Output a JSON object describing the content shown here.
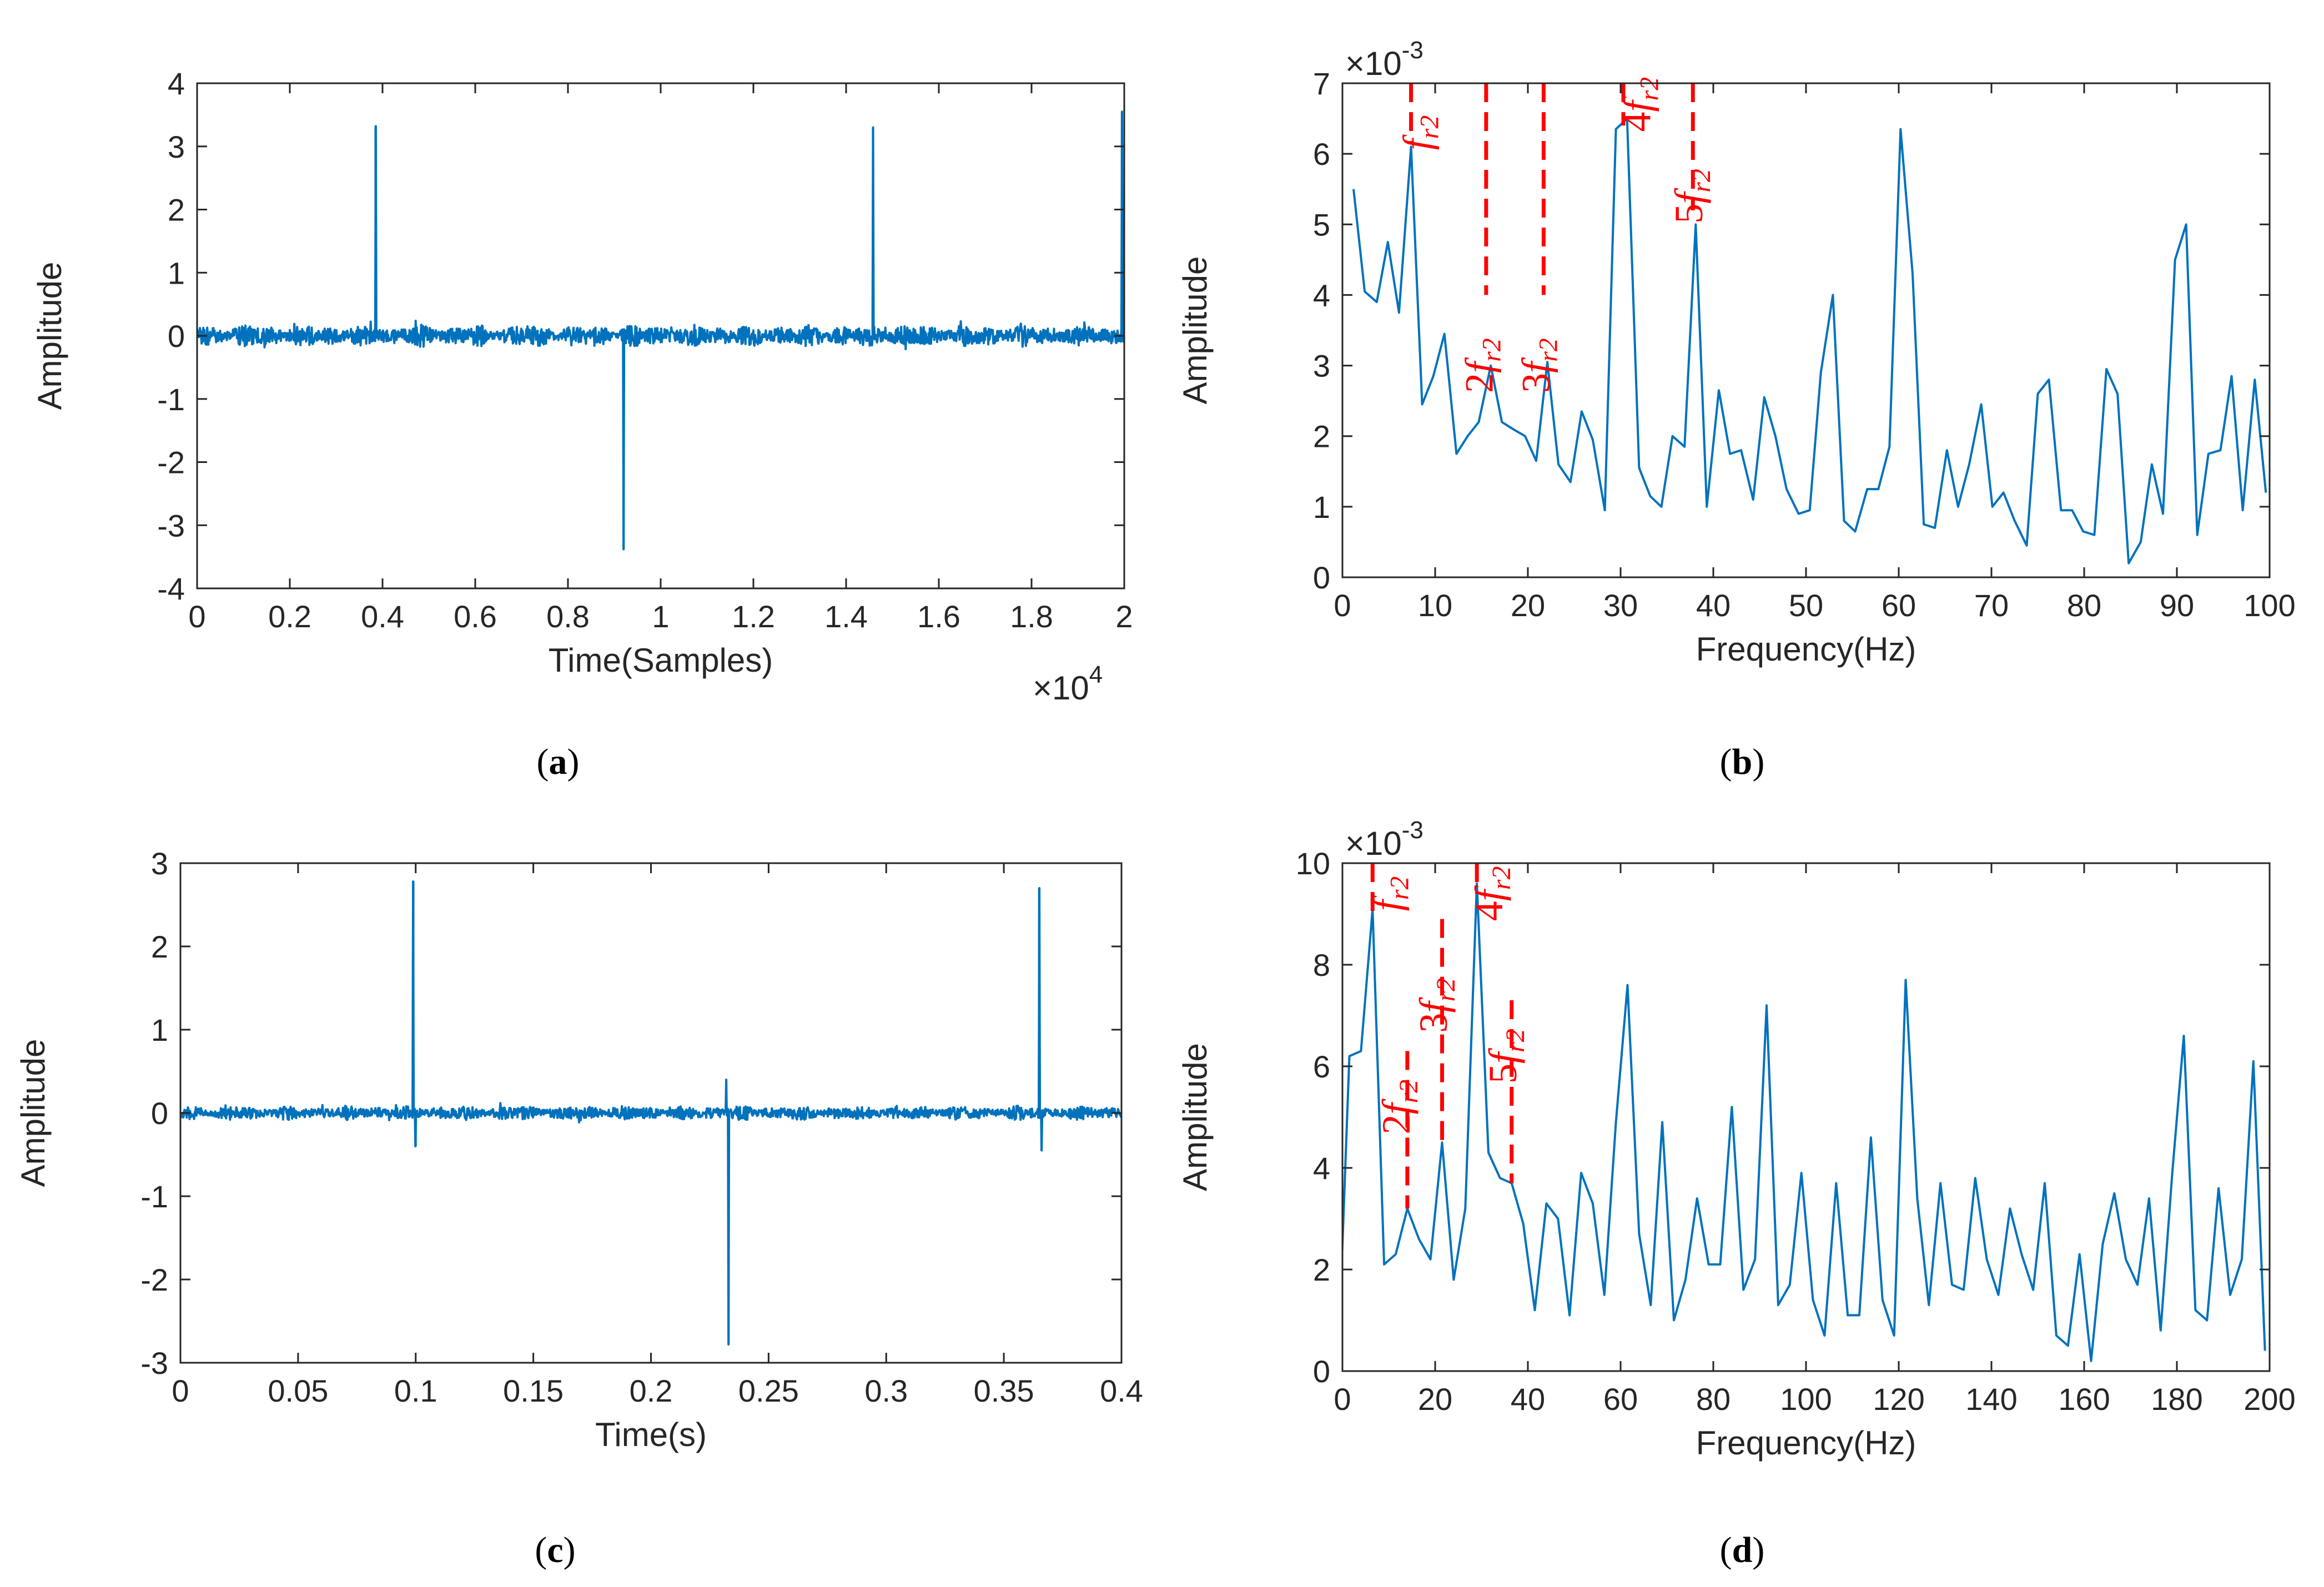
{
  "colors": {
    "series": "#0072BD",
    "annotation": "#ff0000",
    "axis": "#262626",
    "background": "#ffffff"
  },
  "chart_data": [
    {
      "id": "a",
      "caption": "a",
      "type": "line",
      "title": "",
      "xlabel": "Time(Samples)",
      "ylabel": "Amplitude",
      "x_exponent": "×10",
      "x_exponent_power": "4",
      "xlim": [
        0,
        2
      ],
      "ylim": [
        -4,
        4
      ],
      "xticks": [
        0,
        0.2,
        0.4,
        0.6,
        0.8,
        1,
        1.2,
        1.4,
        1.6,
        1.8,
        2
      ],
      "xtick_labels": [
        "0",
        "0.2",
        "0.4",
        "0.6",
        "0.8",
        "1",
        "1.2",
        "1.4",
        "1.6",
        "1.8",
        "2"
      ],
      "yticks": [
        -4,
        -3,
        -2,
        -1,
        0,
        1,
        2,
        3,
        4
      ],
      "ytick_labels": [
        "-4",
        "-3",
        "-2",
        "-1",
        "0",
        "1",
        "2",
        "3",
        "4"
      ],
      "noise_amplitude": 0.18,
      "spikes": [
        {
          "x": 0.385,
          "y": 3.32
        },
        {
          "x": 0.92,
          "y": -3.38
        },
        {
          "x": 1.458,
          "y": 3.3
        },
        {
          "x": 1.995,
          "y": 3.55
        }
      ],
      "annotations": []
    },
    {
      "id": "b",
      "caption": "b",
      "type": "line",
      "title": "",
      "xlabel": "Frequency(Hz)",
      "ylabel": "Amplitude",
      "y_exponent": "×10",
      "y_exponent_power": "-3",
      "xlim": [
        0,
        100
      ],
      "ylim": [
        0,
        7
      ],
      "xticks": [
        0,
        10,
        20,
        30,
        40,
        50,
        60,
        70,
        80,
        90,
        100
      ],
      "xtick_labels": [
        "0",
        "10",
        "20",
        "30",
        "40",
        "50",
        "60",
        "70",
        "80",
        "90",
        "100"
      ],
      "yticks": [
        0,
        1,
        2,
        3,
        4,
        5,
        6,
        7
      ],
      "ytick_labels": [
        "0",
        "1",
        "2",
        "3",
        "4",
        "5",
        "6",
        "7"
      ],
      "x": [
        1.2,
        2.4,
        3.7,
        4.9,
        6.1,
        7.4,
        8.6,
        9.8,
        11,
        12.3,
        13.5,
        14.7,
        16,
        17.2,
        18.4,
        19.7,
        20.9,
        22.1,
        23.3,
        24.6,
        25.8,
        27,
        28.3,
        29.5,
        30.7,
        32,
        33.2,
        34.4,
        35.6,
        36.9,
        38.1,
        39.3,
        40.6,
        41.8,
        43,
        44.3,
        45.5,
        46.7,
        47.9,
        49.2,
        50.4,
        51.6,
        52.9,
        54.1,
        55.3,
        56.6,
        57.8,
        59,
        60.2,
        61.5,
        62.7,
        63.9,
        65.2,
        66.4,
        67.6,
        68.9,
        70.1,
        71.3,
        72.5,
        73.8,
        75,
        76.2,
        77.5,
        78.7,
        79.9,
        81.1,
        82.4,
        83.6,
        84.8,
        86.1,
        87.3,
        88.5,
        89.8,
        91,
        92.2,
        93.4,
        94.7,
        95.9,
        97.1,
        98.4,
        99.6
      ],
      "y": [
        5.5,
        4.05,
        3.9,
        4.75,
        3.75,
        6.1,
        2.45,
        2.85,
        3.45,
        1.75,
        2.0,
        2.2,
        3.0,
        2.2,
        2.1,
        2.0,
        1.65,
        3.05,
        1.6,
        1.35,
        2.35,
        1.95,
        0.95,
        6.35,
        6.5,
        1.55,
        1.15,
        1.0,
        2.0,
        1.85,
        5.0,
        1.0,
        2.65,
        1.75,
        1.8,
        1.1,
        2.55,
        2.0,
        1.25,
        0.9,
        0.95,
        2.9,
        4.0,
        0.8,
        0.65,
        1.25,
        1.25,
        1.85,
        6.35,
        4.3,
        0.75,
        0.7,
        1.8,
        1.0,
        1.6,
        2.45,
        1.0,
        1.2,
        0.8,
        0.45,
        2.6,
        2.8,
        0.95,
        0.95,
        0.65,
        0.6,
        2.95,
        2.6,
        0.2,
        0.5,
        1.6,
        0.9,
        4.5,
        5.0,
        0.6,
        1.75,
        1.8,
        2.85,
        0.95,
        2.8,
        1.2
      ],
      "annotations": [
        {
          "x": 7.4,
          "y_top": 7,
          "y_bottom": 6.15,
          "label_pre": "",
          "label_var": "f",
          "label_sub": "r2",
          "text_x": 9.5,
          "text_y": 6.3,
          "rotated": true
        },
        {
          "x": 15.5,
          "y_top": 7,
          "y_bottom": 4.0,
          "label_pre": "2",
          "label_var": "f",
          "label_sub": "r2",
          "text_x": 16.2,
          "text_y": 3.0,
          "rotated": true
        },
        {
          "x": 21.7,
          "y_top": 7,
          "y_bottom": 4.0,
          "label_pre": "3",
          "label_var": "f",
          "label_sub": "r2",
          "text_x": 22.3,
          "text_y": 3.0,
          "rotated": true
        },
        {
          "x": 30.3,
          "y_top": 7,
          "y_bottom": 6.4,
          "label_pre": "4",
          "label_var": "f",
          "label_sub": "r2",
          "text_x": 33.2,
          "text_y": 6.7,
          "rotated": true
        },
        {
          "x": 37.8,
          "y_top": 7,
          "y_bottom": 5.2,
          "label_pre": "5",
          "label_var": "f",
          "label_sub": "r2",
          "text_x": 38.8,
          "text_y": 5.4,
          "rotated": true
        }
      ]
    },
    {
      "id": "c",
      "caption": "c",
      "type": "line",
      "title": "",
      "xlabel": "Time(s)",
      "ylabel": "Amplitude",
      "xlim": [
        0,
        0.4
      ],
      "ylim": [
        -3,
        3
      ],
      "xticks": [
        0,
        0.05,
        0.1,
        0.15,
        0.2,
        0.25,
        0.3,
        0.35,
        0.4
      ],
      "xtick_labels": [
        "0",
        "0.05",
        "0.1",
        "0.15",
        "0.2",
        "0.25",
        "0.3",
        "0.35",
        "0.4"
      ],
      "yticks": [
        -3,
        -2,
        -1,
        0,
        1,
        2,
        3
      ],
      "ytick_labels": [
        "-3",
        "-2",
        "-1",
        "0",
        "1",
        "2",
        "3"
      ],
      "noise_amplitude": 0.09,
      "spikes": [
        {
          "x": 0.099,
          "y": 2.78
        },
        {
          "x": 0.1,
          "y": -0.4
        },
        {
          "x": 0.232,
          "y": 0.4
        },
        {
          "x": 0.233,
          "y": -2.78
        },
        {
          "x": 0.365,
          "y": 2.7
        },
        {
          "x": 0.366,
          "y": -0.45
        }
      ],
      "annotations": []
    },
    {
      "id": "d",
      "caption": "d",
      "type": "line",
      "title": "",
      "xlabel": "Frequency(Hz)",
      "ylabel": "Amplitude",
      "y_exponent": "×10",
      "y_exponent_power": "-3",
      "xlim": [
        0,
        200
      ],
      "ylim": [
        0,
        10
      ],
      "xticks": [
        0,
        20,
        40,
        60,
        80,
        100,
        120,
        140,
        160,
        180,
        200
      ],
      "xtick_labels": [
        "0",
        "20",
        "40",
        "60",
        "80",
        "100",
        "120",
        "140",
        "160",
        "180",
        "200"
      ],
      "yticks": [
        0,
        2,
        4,
        6,
        8,
        10
      ],
      "ytick_labels": [
        "0",
        "2",
        "4",
        "6",
        "8",
        "10"
      ],
      "x": [
        -1,
        1.5,
        4,
        6.5,
        9,
        11.5,
        14,
        16.5,
        19,
        21.5,
        24,
        26.5,
        29,
        31.5,
        34,
        36.5,
        39,
        41.5,
        44,
        46.5,
        49,
        51.5,
        54,
        56.5,
        59,
        61.5,
        64,
        66.5,
        69,
        71.5,
        74,
        76.5,
        79,
        81.5,
        84,
        86.5,
        89,
        91.5,
        94,
        96.5,
        99,
        101.5,
        104,
        106.5,
        109,
        111.5,
        114,
        116.5,
        119,
        121.5,
        124,
        126.5,
        129,
        131.5,
        134,
        136.5,
        139,
        141.5,
        144,
        146.5,
        149,
        151.5,
        154,
        156.5,
        159,
        161.5,
        164,
        166.5,
        169,
        171.5,
        174,
        176.5,
        179,
        181.5,
        184,
        186.5,
        189,
        191.5,
        194,
        196.5,
        199
      ],
      "y": [
        0,
        6.2,
        6.3,
        9.1,
        2.1,
        2.3,
        3.2,
        2.6,
        2.2,
        4.5,
        1.8,
        3.2,
        9.6,
        4.3,
        3.8,
        3.7,
        2.9,
        1.2,
        3.3,
        3.0,
        1.1,
        3.9,
        3.3,
        1.5,
        4.9,
        7.6,
        2.7,
        1.3,
        4.9,
        1.0,
        1.8,
        3.4,
        2.1,
        2.1,
        5.2,
        1.6,
        2.2,
        7.2,
        1.3,
        1.7,
        3.9,
        1.4,
        0.7,
        3.7,
        1.1,
        1.1,
        4.6,
        1.4,
        0.7,
        7.7,
        3.4,
        1.3,
        3.7,
        1.7,
        1.6,
        3.8,
        2.2,
        1.5,
        3.2,
        2.3,
        1.6,
        3.7,
        0.7,
        0.5,
        2.3,
        0.2,
        2.5,
        3.5,
        2.2,
        1.7,
        3.4,
        0.8,
        3.9,
        6.6,
        1.2,
        1.0,
        3.6,
        1.5,
        2.2,
        6.1,
        0.4
      ],
      "annotations": [
        {
          "x": 6.5,
          "y_top": 10,
          "y_bottom": 9.0,
          "label_pre": "",
          "label_var": "f",
          "label_sub": "r2",
          "text_x": 12.5,
          "text_y": 9.4,
          "rotated": true
        },
        {
          "x": 14.0,
          "y_top": 6.3,
          "y_bottom": 3.2,
          "label_pre": "2",
          "label_var": "f",
          "label_sub": "r2",
          "text_x": 14.5,
          "text_y": 5.2,
          "rotated": true
        },
        {
          "x": 21.5,
          "y_top": 8.9,
          "y_bottom": 4.5,
          "label_pre": "3",
          "label_var": "f",
          "label_sub": "r2",
          "text_x": 22.5,
          "text_y": 7.2,
          "rotated": true
        },
        {
          "x": 29.0,
          "y_top": 10,
          "y_bottom": 9.4,
          "label_pre": "4",
          "label_var": "f",
          "label_sub": "r2",
          "text_x": 34.5,
          "text_y": 9.4,
          "rotated": true
        },
        {
          "x": 36.5,
          "y_top": 7.3,
          "y_bottom": 3.7,
          "label_pre": "5",
          "label_var": "f",
          "label_sub": "r2",
          "text_x": 37.5,
          "text_y": 6.2,
          "rotated": true
        }
      ]
    }
  ]
}
